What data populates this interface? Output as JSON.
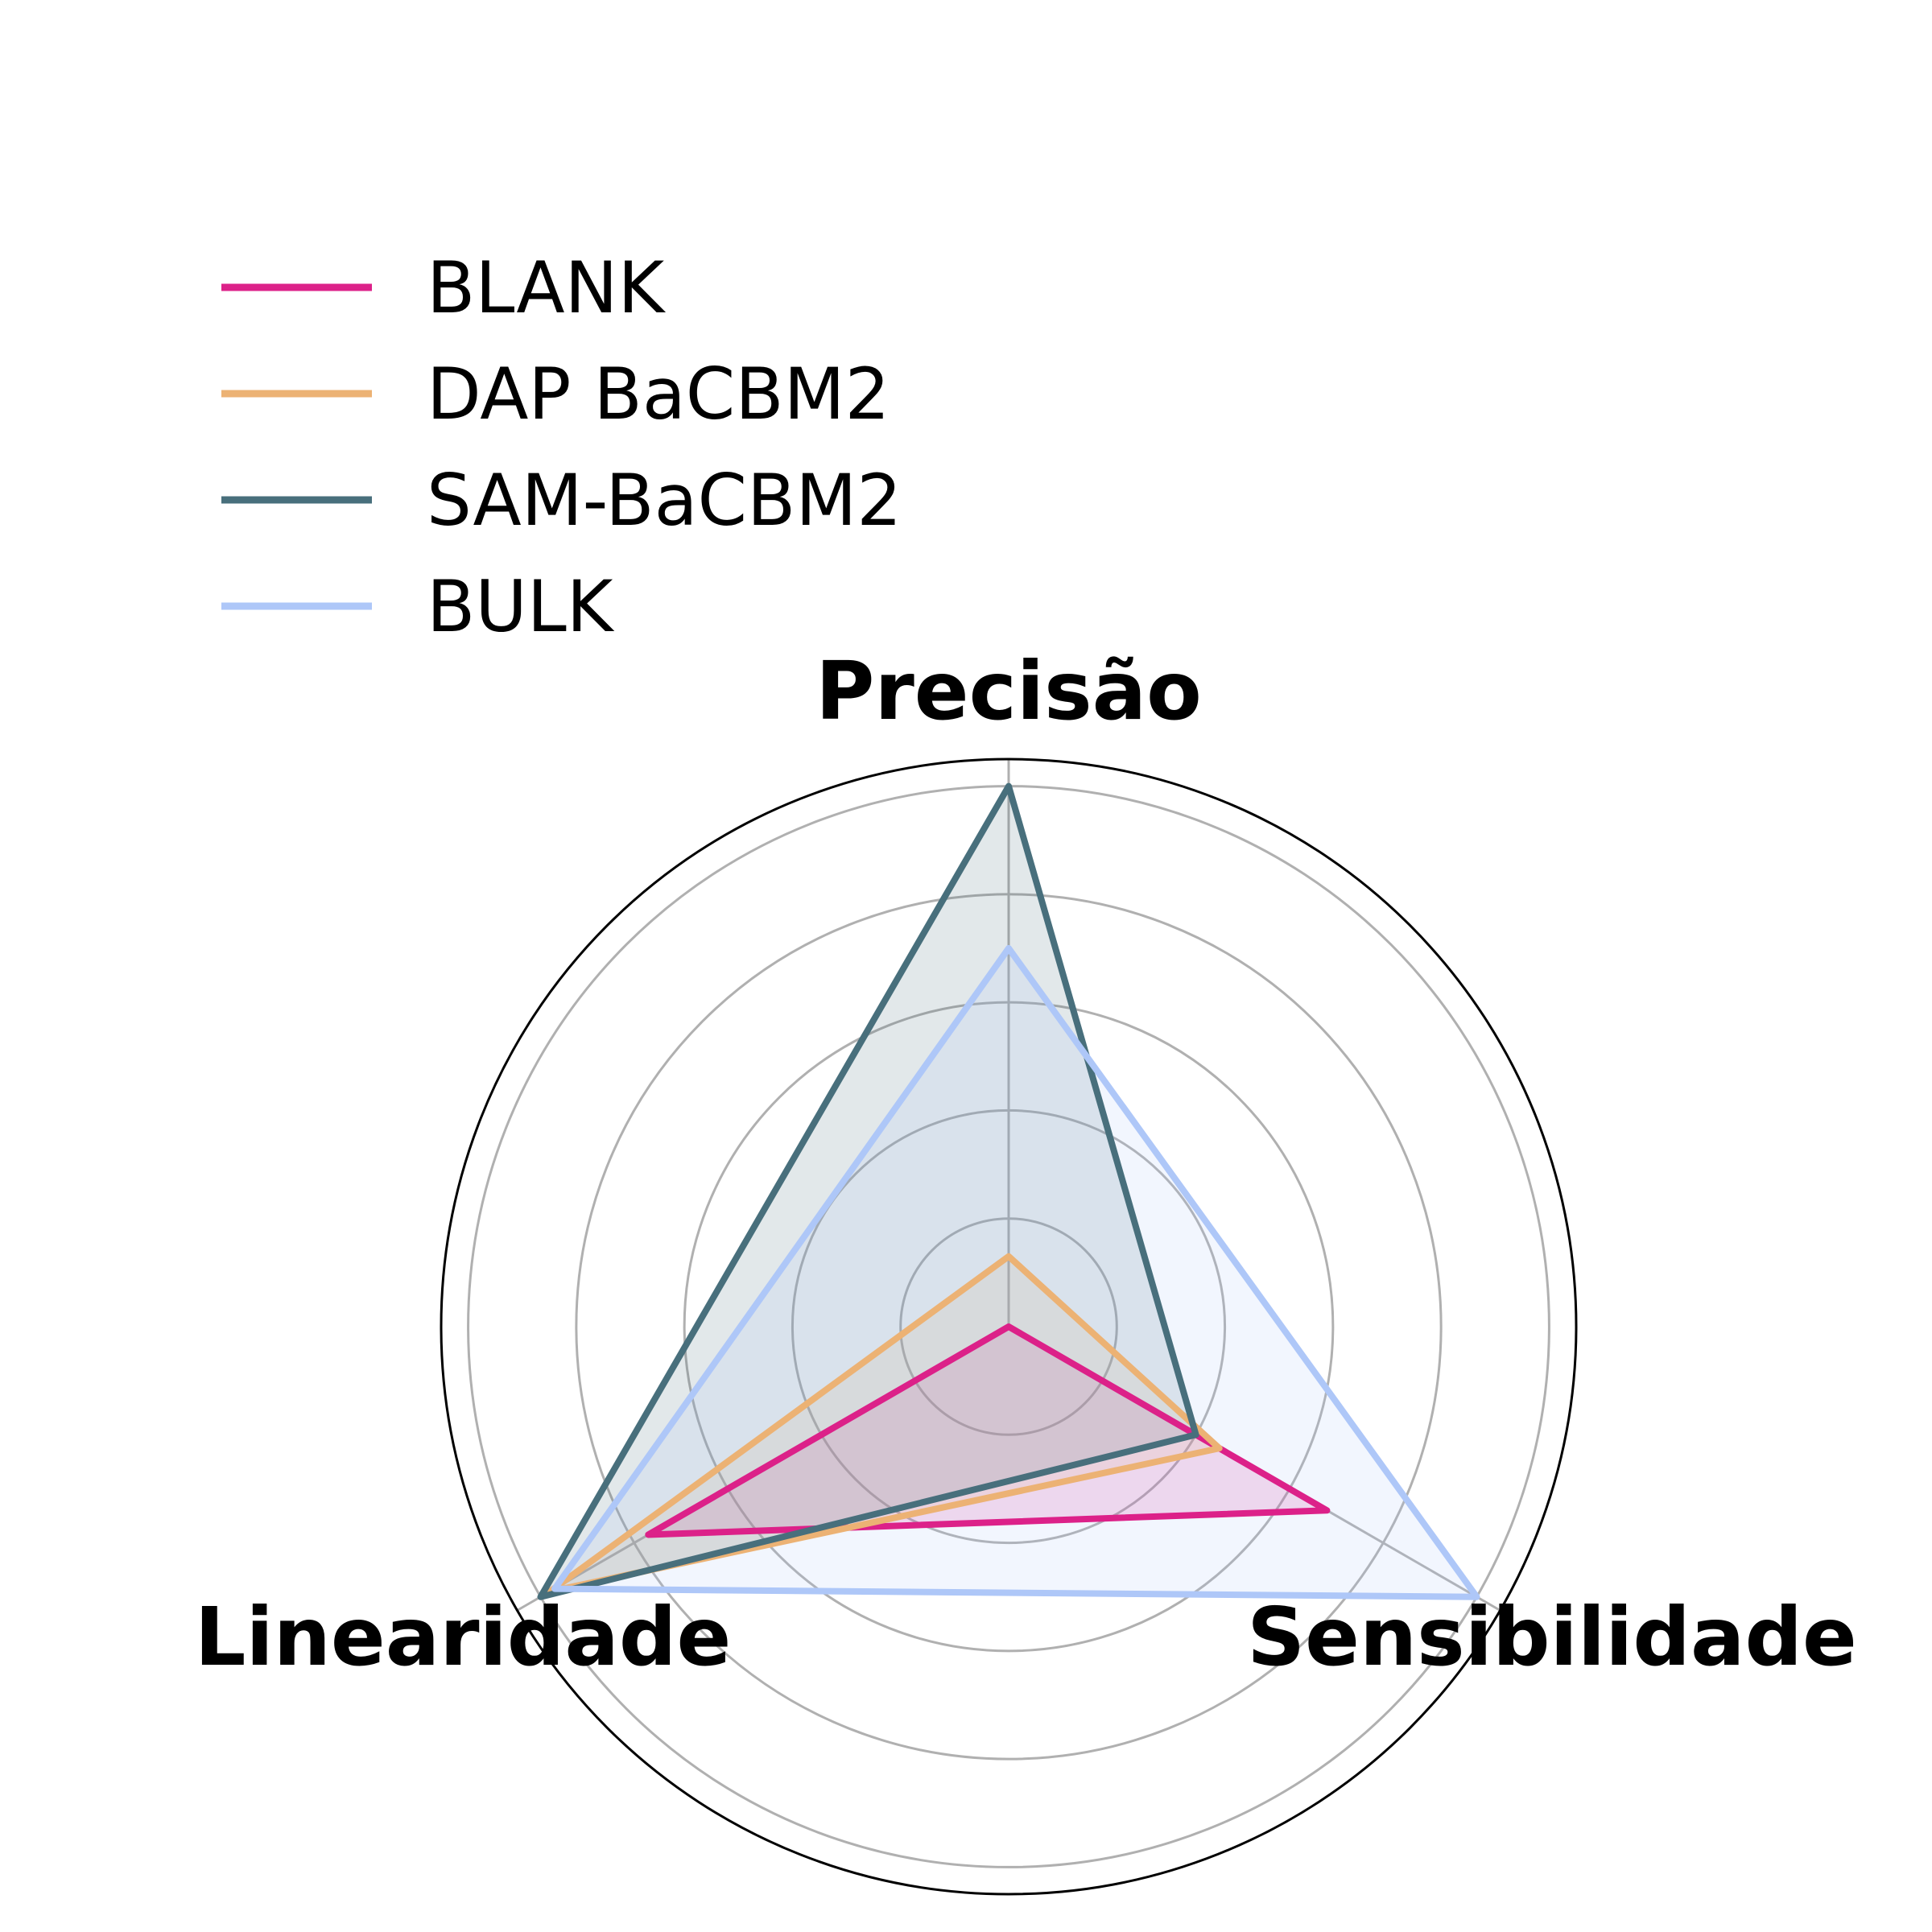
{
  "chart_data": {
    "type": "radar",
    "axes": [
      "Precisão",
      "Sensibilidade",
      "Linearidade"
    ],
    "range": [
      0,
      1.05
    ],
    "grid_levels": [
      0.2,
      0.4,
      0.6,
      0.8,
      1.0
    ],
    "grid": true,
    "legend_position": "top-left",
    "series": [
      {
        "name": "BLANK",
        "color": "#dc2189",
        "values": [
          0.0,
          0.68,
          0.77
        ]
      },
      {
        "name": "DAP BaCBM2",
        "color": "#ecb274",
        "values": [
          0.13,
          0.45,
          0.98
        ]
      },
      {
        "name": "SAM-BaCBM2",
        "color": "#486f7c",
        "values": [
          1.0,
          0.4,
          1.0
        ]
      },
      {
        "name": "BULK",
        "color": "#aec7f8",
        "values": [
          0.7,
          1.0,
          0.97
        ]
      }
    ]
  }
}
